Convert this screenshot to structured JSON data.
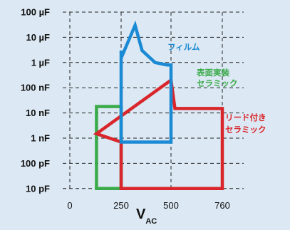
{
  "chart_data": {
    "type": "area",
    "xlabel": "V",
    "xlabel_subscript": "AC",
    "x_ticks": [
      "0",
      "250",
      "500",
      "760"
    ],
    "y_ticks": [
      "100 µF",
      "10 µF",
      "1 µF",
      "100 nF",
      "10 nF",
      "1 nF",
      "100 pF",
      "10 pF"
    ],
    "y_scale": "log",
    "grid": "dashed",
    "series": [
      {
        "name": "フィルム",
        "color": "#1a8ad4",
        "label_lines": [
          "フィルム"
        ],
        "points": [
          [
            250,
            "3 µF"
          ],
          [
            250,
            "1.5 µF"
          ],
          [
            320,
            "30 µF"
          ],
          [
            355,
            "3 µF"
          ],
          [
            420,
            "1 µF"
          ],
          [
            480,
            "800 nF"
          ],
          [
            500,
            "800 nF"
          ],
          [
            500,
            "700 pF"
          ],
          [
            250,
            "700 pF"
          ]
        ]
      },
      {
        "name": "表面実装 セラミック",
        "color": "#3aaa4a",
        "label_lines": [
          "表面実装",
          "セラミック"
        ],
        "points": [
          [
            130,
            "18 nF"
          ],
          [
            250,
            "18 nF"
          ],
          [
            250,
            "10 pF"
          ],
          [
            130,
            "10 pF"
          ]
        ]
      },
      {
        "name": "リード付き セラミック",
        "color": "#d9262c",
        "label_lines": [
          "リード付き",
          "セラミック"
        ],
        "points": [
          [
            130,
            "1.5 nF"
          ],
          [
            500,
            "200 nF"
          ],
          [
            520,
            "15 nF"
          ],
          [
            760,
            "15 nF"
          ],
          [
            760,
            "10 pF"
          ],
          [
            250,
            "10 pF"
          ],
          [
            250,
            "700 pF"
          ]
        ]
      }
    ]
  }
}
